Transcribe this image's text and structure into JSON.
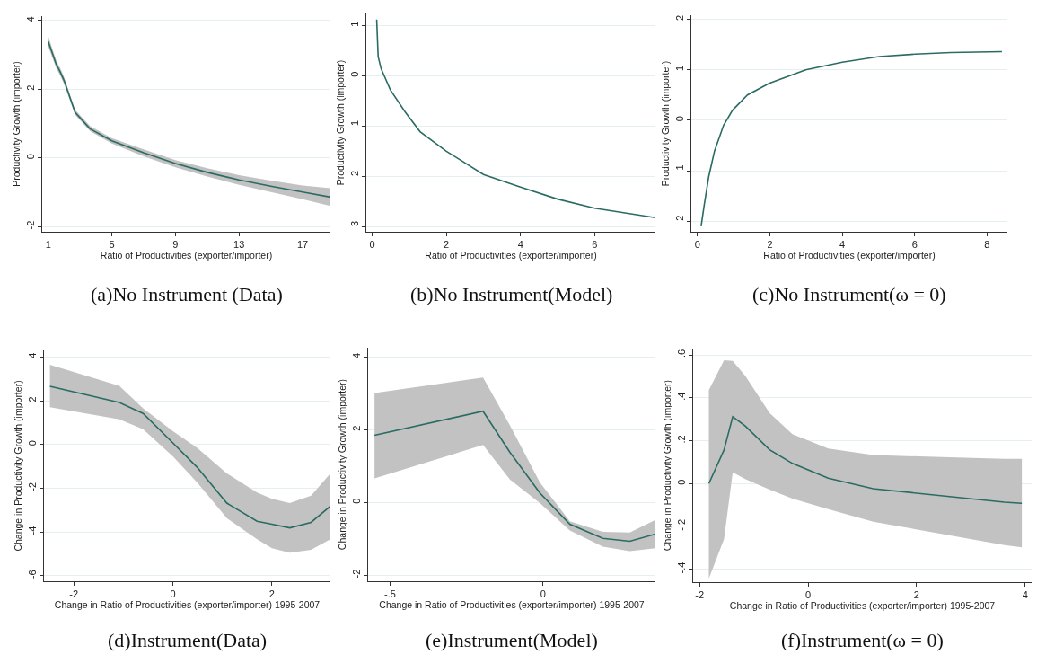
{
  "chart_data": [
    {
      "type": "line",
      "title": "(a)No Instrument (Data)",
      "xlabel": "Ratio of Productivities (exporter/importer)",
      "ylabel": "Productivity Growth (importer)",
      "grid": "y",
      "xlim": [
        0.62,
        18.75
      ],
      "ylim": [
        -2.15,
        4.13
      ],
      "xticks": [
        1,
        5,
        9,
        13,
        17
      ],
      "yticks": [
        -2,
        0,
        2,
        4
      ],
      "x": [
        1,
        1.5,
        1.75,
        2,
        2.69,
        3.63,
        5,
        7,
        9,
        11,
        13,
        15,
        17,
        18.75
      ],
      "series": [
        {
          "color": "#2a6b62",
          "values": [
            3.39,
            2.73,
            2.51,
            2.25,
            1.33,
            0.85,
            0.5,
            0.15,
            -0.16,
            -0.42,
            -0.64,
            -0.82,
            -0.99,
            -1.14
          ],
          "upper": [
            3.55,
            2.85,
            2.62,
            2.35,
            1.4,
            0.93,
            0.58,
            0.25,
            -0.06,
            -0.3,
            -0.5,
            -0.66,
            -0.8,
            -0.88
          ],
          "lower": [
            3.25,
            2.62,
            2.4,
            2.15,
            1.26,
            0.78,
            0.42,
            0.05,
            -0.27,
            -0.54,
            -0.78,
            -0.99,
            -1.2,
            -1.4
          ]
        }
      ]
    },
    {
      "type": "line",
      "title": "(b)No Instrument(Model)",
      "xlabel": "Ratio of Productivities (exporter/importer)",
      "ylabel": "Productivity Growth (importer)",
      "grid": "y",
      "xlim": [
        -0.16,
        7.64
      ],
      "ylim": [
        -3.1,
        1.24
      ],
      "xticks": [
        0,
        2,
        4,
        6
      ],
      "yticks": [
        -3,
        -2,
        -1,
        0,
        1
      ],
      "x": [
        0.12,
        0.16,
        0.24,
        0.49,
        0.89,
        1.29,
        2,
        3,
        4,
        5,
        6,
        7.64
      ],
      "series": [
        {
          "color": "#2a6b62",
          "values": [
            1.12,
            0.38,
            0.14,
            -0.28,
            -0.72,
            -1.11,
            -1.5,
            -1.96,
            -2.21,
            -2.45,
            -2.63,
            -2.82
          ]
        }
      ]
    },
    {
      "type": "line",
      "title": "(c)No Instrument(ω = 0)",
      "xlabel": "Ratio of Productivities (exporter/importer)",
      "ylabel": "Productivity Growth (importer)",
      "grid": "y",
      "xlim": [
        -0.17,
        8.56
      ],
      "ylim": [
        -2.21,
        2.08
      ],
      "xticks": [
        0,
        2,
        4,
        6,
        8
      ],
      "yticks": [
        -2,
        -1,
        0,
        1,
        2
      ],
      "x": [
        0.1,
        0.18,
        0.31,
        0.47,
        0.72,
        0.97,
        1.38,
        1.98,
        2.99,
        4,
        5.02,
        6.01,
        7,
        8.41
      ],
      "series": [
        {
          "color": "#2a6b62",
          "values": [
            -2.1,
            -1.71,
            -1.12,
            -0.61,
            -0.1,
            0.2,
            0.5,
            0.73,
            1.0,
            1.15,
            1.26,
            1.31,
            1.34,
            1.36
          ]
        }
      ]
    },
    {
      "type": "line",
      "title": "(d)Instrument(Data)",
      "xlabel": "Change in Ratio of Productivities (exporter/importer) 1995-2007",
      "ylabel": "Change in Productivity Growth (importer)",
      "grid": "y",
      "xlim": [
        -2.6,
        3.18
      ],
      "ylim": [
        -6.25,
        4.3
      ],
      "xticks": [
        -2,
        0,
        2
      ],
      "yticks": [
        -6,
        -4,
        -2,
        0,
        2,
        4
      ],
      "x": [
        -2.48,
        -1.08,
        -0.6,
        0.01,
        0.49,
        1.09,
        1.7,
        2.0,
        2.36,
        2.79,
        3.18
      ],
      "series": [
        {
          "color": "#2a6b62",
          "values": [
            2.66,
            1.92,
            1.42,
            0.05,
            -1.04,
            -2.68,
            -3.51,
            -3.64,
            -3.81,
            -3.56,
            -2.82
          ],
          "upper": [
            3.64,
            2.68,
            1.65,
            0.6,
            -0.15,
            -1.32,
            -2.2,
            -2.48,
            -2.68,
            -2.34,
            -1.32
          ],
          "lower": [
            1.7,
            1.15,
            0.7,
            -0.56,
            -1.73,
            -3.37,
            -4.33,
            -4.74,
            -4.95,
            -4.81,
            -4.33
          ]
        }
      ]
    },
    {
      "type": "line",
      "title": "(e)Instrument(Model)",
      "xlabel": "Change in Ratio of Productivities (exporter/importer) 1995-2007",
      "ylabel": "Change in Productivity Growth (importer)",
      "grid": "y",
      "xlim": [
        -0.572,
        0.368
      ],
      "ylim": [
        -2.17,
        4.26
      ],
      "xticks": [
        {
          "value": -0.5,
          "label": "-.5"
        },
        0
      ],
      "yticks": [
        -2,
        0,
        2,
        4
      ],
      "x": [
        -0.551,
        -0.196,
        -0.108,
        -0.01,
        0.088,
        0.196,
        0.284,
        0.368
      ],
      "series": [
        {
          "color": "#2a6b62",
          "values": [
            1.85,
            2.51,
            1.38,
            0.26,
            -0.6,
            -0.99,
            -1.07,
            -0.87
          ],
          "upper": [
            3.01,
            3.44,
            2.12,
            0.55,
            -0.52,
            -0.81,
            -0.83,
            -0.48
          ],
          "lower": [
            0.66,
            1.58,
            0.63,
            -0.02,
            -0.77,
            -1.22,
            -1.34,
            -1.26
          ]
        }
      ]
    },
    {
      "type": "line",
      "title": "(f)Instrument(ω = 0)",
      "xlabel": "Change in Ratio of Productivities (exporter/importer) 1995-2007",
      "ylabel": "Change in Productivity Growth (importer)",
      "grid": "y",
      "xlim": [
        -2.12,
        4.12
      ],
      "ylim": [
        -0.46,
        0.63
      ],
      "xticks": [
        -2,
        0,
        2,
        4
      ],
      "yticks": [
        {
          "value": -0.4,
          "label": "-.4"
        },
        {
          "value": -0.2,
          "label": "-.2"
        },
        0,
        {
          "value": 0.2,
          "label": ".2"
        },
        {
          "value": 0.4,
          "label": ".4"
        },
        {
          "value": 0.6,
          "label": ".6"
        }
      ],
      "x": [
        -1.83,
        -1.55,
        -1.39,
        -1.16,
        -0.71,
        -0.29,
        0.37,
        1.2,
        3.62,
        3.94
      ],
      "series": [
        {
          "color": "#2a6b62",
          "values": [
            0,
            0.157,
            0.312,
            0.269,
            0.158,
            0.094,
            0.025,
            -0.024,
            -0.087,
            -0.092
          ],
          "upper": [
            0.436,
            0.576,
            0.572,
            0.503,
            0.329,
            0.231,
            0.164,
            0.133,
            0.115,
            0.115
          ],
          "lower": [
            -0.443,
            -0.259,
            0.053,
            0.021,
            -0.028,
            -0.07,
            -0.119,
            -0.178,
            -0.287,
            -0.298
          ]
        }
      ]
    }
  ]
}
